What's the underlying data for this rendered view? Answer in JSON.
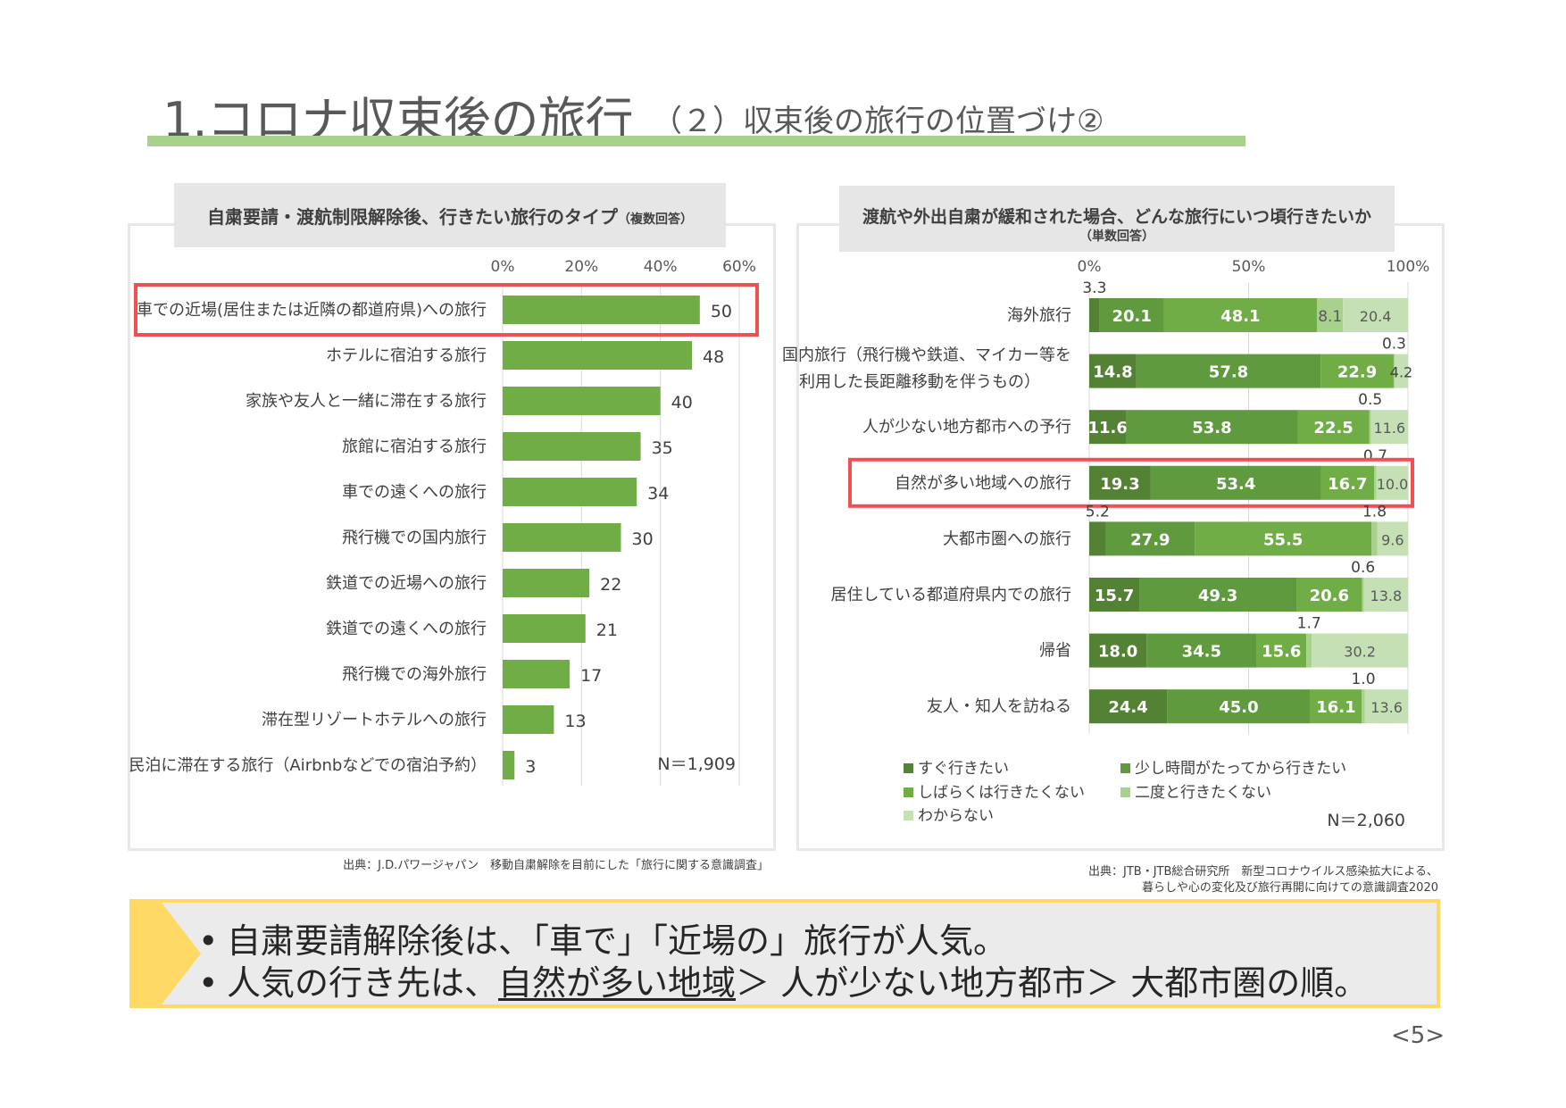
{
  "page": {
    "title_main": "1.コロナ収束後の旅行",
    "title_sub": "（２）収束後の旅行の位置づけ②",
    "page_number": "<5>"
  },
  "colors": {
    "accent_line": "#a9d18e",
    "bar_green": "#70ad47",
    "highlight": "#f05050",
    "summary_border": "#ffd966",
    "stack": [
      "#548235",
      "#5f9a3f",
      "#70ad47",
      "#a9d18e",
      "#c5e0b4"
    ]
  },
  "left_panel": {
    "header": "自粛要請・渡航制限解除後、行きたい旅行のタイプ",
    "header_note": "（複数回答）",
    "n_label": "N＝1,909",
    "source": "出典：J.D.パワージャパン　移動自粛解除を目前にした「旅行に関する意識調査」"
  },
  "right_panel": {
    "header": "渡航や外出自粛が緩和された場合、どんな旅行にいつ頃行きたいか",
    "header_note": "（単数回答）",
    "n_label": "N＝2,060",
    "source_line1": "出典：JTB・JTB総合研究所　新型コロナウイルス感染拡大による、",
    "source_line2": "暮らしや心の変化及び旅行再開に向けての意識調査2020"
  },
  "summary": {
    "bullet1": "自粛要請解除後は、「車で」「近場の」旅行が人気。",
    "bullet2_pre": "人気の行き先は、",
    "bullet2_underlined": "自然が多い地域",
    "bullet2_post": "＞ 人が少ない地方都市＞ 大都市圏の順。",
    "bullet_symbol": "•"
  },
  "chart_data": [
    {
      "type": "bar",
      "orientation": "horizontal",
      "title": "自粛要請・渡航制限解除後、行きたい旅行のタイプ（複数回答）",
      "categories": [
        "車での近場(居住または近隣の都道府県)への旅行",
        "ホテルに宿泊する旅行",
        "家族や友人と一緒に滞在する旅行",
        "旅館に宿泊する旅行",
        "車での遠くへの旅行",
        "飛行機での国内旅行",
        "鉄道での近場への旅行",
        "鉄道での遠くへの旅行",
        "飛行機での海外旅行",
        "滞在型リゾートホテルへの旅行",
        "民泊に滞在する旅行（Airbnbなどでの宿泊予約）"
      ],
      "values": [
        50,
        48,
        40,
        35,
        34,
        30,
        22,
        21,
        17,
        13,
        3
      ],
      "xlim": [
        0,
        60
      ],
      "ticks": [
        "0%",
        "20%",
        "40%",
        "60%"
      ],
      "highlighted_category": "車での近場(居住または近隣の都道府県)への旅行"
    },
    {
      "type": "bar",
      "orientation": "horizontal",
      "stacked": true,
      "title": "渡航や外出自粛が緩和された場合、どんな旅行にいつ頃行きたいか（単数回答）",
      "categories": [
        "海外旅行",
        "国内旅行（飛行機や鉄道、マイカー等を利用した長距離移動を伴うもの）",
        "人が少ない地方都市への予行",
        "自然が多い地域への旅行",
        "大都市圏への旅行",
        "居住している都道府県内での旅行",
        "帰省",
        "友人・知人を訪ねる"
      ],
      "category_lines": [
        [
          "海外旅行"
        ],
        [
          "国内旅行（飛行機や鉄道、マイカー等を",
          "利用した長距離移動を伴うもの）"
        ],
        [
          "人が少ない地方都市への予行"
        ],
        [
          "自然が多い地域への旅行"
        ],
        [
          "大都市圏への旅行"
        ],
        [
          "居住している都道府県内での旅行"
        ],
        [
          "帰省"
        ],
        [
          "友人・知人を訪ねる"
        ]
      ],
      "series": [
        {
          "name": "すぐ行きたい",
          "values": [
            3.3,
            14.8,
            11.6,
            19.3,
            5.2,
            15.7,
            18.0,
            24.4
          ]
        },
        {
          "name": "少し時間がたってから行きたい",
          "values": [
            20.1,
            57.8,
            53.8,
            53.4,
            27.9,
            49.3,
            34.5,
            45.0
          ]
        },
        {
          "name": "しばらくは行きたくない",
          "values": [
            48.1,
            22.9,
            22.5,
            16.7,
            55.5,
            20.6,
            15.6,
            16.1
          ]
        },
        {
          "name": "二度と行きたくない",
          "values": [
            8.1,
            0.3,
            0.5,
            0.7,
            1.8,
            0.6,
            1.7,
            1.0
          ]
        },
        {
          "name": "わからない",
          "values": [
            20.4,
            4.2,
            11.6,
            10.0,
            9.6,
            13.8,
            30.2,
            13.6
          ]
        }
      ],
      "xlim": [
        0,
        100
      ],
      "ticks": [
        "0%",
        "50%",
        "100%"
      ],
      "highlighted_category": "自然が多い地域への旅行"
    }
  ]
}
